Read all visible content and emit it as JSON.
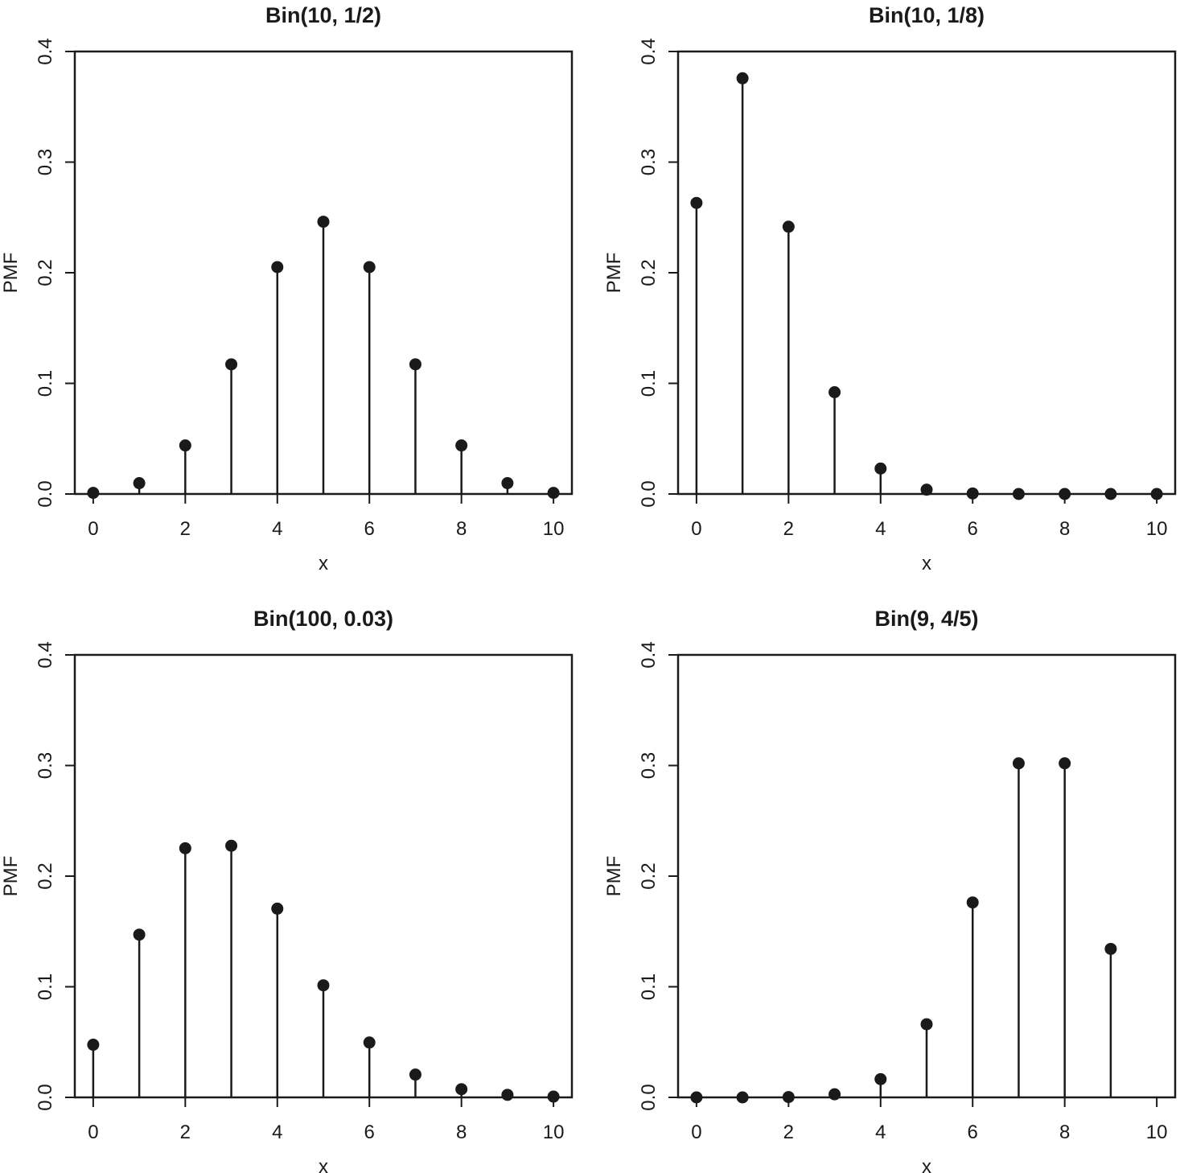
{
  "chart_data": [
    {
      "type": "stem",
      "title": "Bin(10, 1/2)",
      "xlabel": "x",
      "ylabel": "PMF",
      "xlim": [
        -0.4,
        10.4
      ],
      "ylim": [
        0,
        0.4
      ],
      "xticks": [
        0,
        2,
        4,
        6,
        8,
        10
      ],
      "yticks": [
        "0.0",
        "0.1",
        "0.2",
        "0.3",
        "0.4"
      ],
      "grid": false,
      "x": [
        0,
        1,
        2,
        3,
        4,
        5,
        6,
        7,
        8,
        9,
        10
      ],
      "y": [
        0.001,
        0.0098,
        0.0439,
        0.1172,
        0.2051,
        0.2461,
        0.2051,
        0.1172,
        0.0439,
        0.0098,
        0.001
      ]
    },
    {
      "type": "stem",
      "title": "Bin(10, 1/8)",
      "xlabel": "x",
      "ylabel": "PMF",
      "xlim": [
        -0.4,
        10.4
      ],
      "ylim": [
        0,
        0.4
      ],
      "xticks": [
        0,
        2,
        4,
        6,
        8,
        10
      ],
      "yticks": [
        "0.0",
        "0.1",
        "0.2",
        "0.3",
        "0.4"
      ],
      "grid": false,
      "x": [
        0,
        1,
        2,
        3,
        4,
        5,
        6,
        7,
        8,
        9,
        10
      ],
      "y": [
        0.2631,
        0.3758,
        0.2416,
        0.092,
        0.023,
        0.0039,
        0.0005,
        0.0,
        0.0,
        0.0,
        0.0
      ]
    },
    {
      "type": "stem",
      "title": "Bin(100, 0.03)",
      "xlabel": "x",
      "ylabel": "PMF",
      "xlim": [
        -0.4,
        10.4
      ],
      "ylim": [
        0,
        0.4
      ],
      "xticks": [
        0,
        2,
        4,
        6,
        8,
        10
      ],
      "yticks": [
        "0.0",
        "0.1",
        "0.2",
        "0.3",
        "0.4"
      ],
      "grid": false,
      "x": [
        0,
        1,
        2,
        3,
        4,
        5,
        6,
        7,
        8,
        9,
        10
      ],
      "y": [
        0.0476,
        0.1471,
        0.2252,
        0.2275,
        0.1706,
        0.1013,
        0.0496,
        0.0206,
        0.0074,
        0.0023,
        0.0007
      ]
    },
    {
      "type": "stem",
      "title": "Bin(9, 4/5)",
      "xlabel": "x",
      "ylabel": "PMF",
      "xlim": [
        -0.4,
        10.4
      ],
      "ylim": [
        0,
        0.4
      ],
      "xticks": [
        0,
        2,
        4,
        6,
        8,
        10
      ],
      "yticks": [
        "0.0",
        "0.1",
        "0.2",
        "0.3",
        "0.4"
      ],
      "grid": false,
      "x": [
        0,
        1,
        2,
        3,
        4,
        5,
        6,
        7,
        8,
        9
      ],
      "y": [
        0.0,
        0.0,
        0.0003,
        0.0028,
        0.0165,
        0.0661,
        0.1762,
        0.302,
        0.302,
        0.1342
      ]
    }
  ]
}
